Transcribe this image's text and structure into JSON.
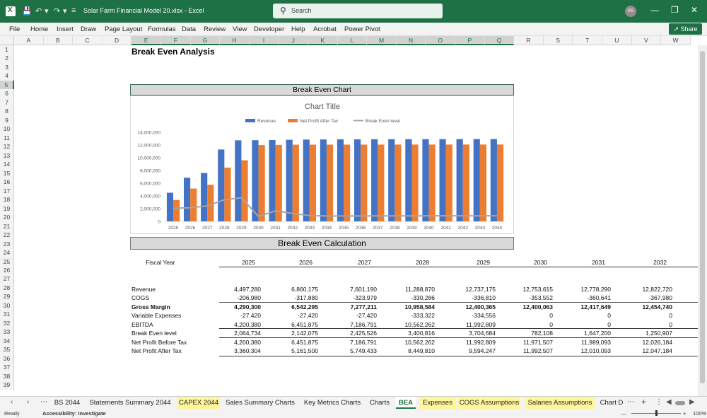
{
  "titlebar": {
    "doc_title": "Solar Farm Financial Model 20.xlsx  -  Excel",
    "search_placeholder": "Search",
    "avatar": "RS"
  },
  "menu": [
    "File",
    "Home",
    "Insert",
    "Draw",
    "Page Layout",
    "Formulas",
    "Data",
    "Review",
    "View",
    "Developer",
    "Help",
    "Acrobat",
    "Power Pivot"
  ],
  "share_label": "Share",
  "columns": [
    "A",
    "B",
    "C",
    "D",
    "E",
    "F",
    "G",
    "H",
    "I",
    "J",
    "K",
    "L",
    "M",
    "N",
    "O",
    "P",
    "Q",
    "R",
    "S",
    "T",
    "U",
    "V",
    "W"
  ],
  "rows": [
    "1",
    "2",
    "3",
    "4",
    "5",
    "6",
    "7",
    "8",
    "9",
    "10",
    "11",
    "12",
    "13",
    "14",
    "15",
    "16",
    "17",
    "18",
    "19",
    "20",
    "21",
    "22",
    "23",
    "24",
    "25",
    "26",
    "27",
    "28",
    "29",
    "30",
    "31",
    "32",
    "33",
    "34",
    "35",
    "36",
    "37",
    "38",
    "39"
  ],
  "sheet_title": "Break Even Analysis",
  "chart_band": "Break Even Chart",
  "calc_band": "Break Even Calculation",
  "chart_data": {
    "type": "bar",
    "title": "Chart Title",
    "categories": [
      "2025",
      "2026",
      "2027",
      "2028",
      "2029",
      "2030",
      "2031",
      "2032",
      "2033",
      "2034",
      "2035",
      "2036",
      "2037",
      "2038",
      "2039",
      "2040",
      "2041",
      "2042",
      "2043",
      "2044"
    ],
    "series": [
      {
        "name": "Revenue",
        "type": "bar",
        "color": "#4472c4",
        "values": [
          4497280,
          6860175,
          7601190,
          11288870,
          12737175,
          12753615,
          12778290,
          12822720,
          12850000,
          12870000,
          12880000,
          12890000,
          12900000,
          12905000,
          12910000,
          12915000,
          12920000,
          12925000,
          12930000,
          12935000
        ]
      },
      {
        "name": "Net Profit After Tax",
        "type": "bar",
        "color": "#ed7d31",
        "values": [
          3360304,
          5161500,
          5749433,
          8449810,
          9594247,
          11992507,
          12010093,
          12047184,
          12050000,
          12055000,
          12058000,
          12060000,
          12062000,
          12064000,
          12066000,
          12068000,
          12070000,
          12072000,
          12074000,
          12076000
        ]
      },
      {
        "name": "Break Even level",
        "type": "line",
        "color": "#a5a5a5",
        "values": [
          2064734,
          2142075,
          2425526,
          3400816,
          3704684,
          782108,
          1647200,
          1250907,
          900000,
          850000,
          850000,
          850000,
          860000,
          860000,
          860000,
          870000,
          870000,
          870000,
          880000,
          880000
        ]
      }
    ],
    "y_ticks": [
      "0",
      "2,000,000",
      "4,000,000",
      "6,000,000",
      "8,000,000",
      "10,000,000",
      "12,000,000",
      "14,000,000"
    ],
    "ylim": [
      0,
      14000000
    ],
    "legend_position": "top"
  },
  "table": {
    "fiscal_label": "Fiscal Year",
    "years": [
      "2025",
      "2026",
      "2027",
      "2028",
      "2029",
      "2030",
      "2031",
      "2032"
    ],
    "rows": [
      {
        "label": "Revenue",
        "bold": false,
        "values": [
          "4,497,280",
          "6,860,175",
          "7,601,190",
          "11,288,870",
          "12,737,175",
          "12,753,615",
          "12,778,290",
          "12,822,720"
        ]
      },
      {
        "label": "COGS",
        "bold": false,
        "values": [
          "-206,980",
          "-317,880",
          "-323,979",
          "-330,286",
          "-336,810",
          "-353,552",
          "-360,641",
          "-367,980"
        ]
      },
      {
        "label": "Gross Margin",
        "bold": true,
        "values": [
          "4,290,300",
          "6,542,295",
          "7,277,211",
          "10,958,584",
          "12,400,365",
          "12,400,063",
          "12,417,649",
          "12,454,740"
        ]
      },
      {
        "label": "Variable Expenses",
        "bold": false,
        "values": [
          "-27,420",
          "-27,420",
          "-27,420",
          "-333,322",
          "-334,556",
          "0",
          "0",
          "0"
        ]
      },
      {
        "label": "EBITDA",
        "bold": false,
        "values": [
          "4,200,380",
          "6,451,875",
          "7,186,791",
          "10,562,262",
          "11,992,809",
          "0",
          "0",
          "0"
        ]
      },
      {
        "label": "Break Even level",
        "bold": false,
        "values": [
          "2,064,734",
          "2,142,075",
          "2,425,526",
          "3,400,816",
          "3,704,684",
          "782,108",
          "1,647,200",
          "1,250,907"
        ]
      },
      {
        "label": "Net Profit Before Tax",
        "bold": false,
        "values": [
          "4,200,380",
          "6,451,875",
          "7,186,791",
          "10,562,262",
          "11,992,809",
          "11,971,507",
          "11,989,093",
          "12,026,184"
        ]
      },
      {
        "label": "Net Profit After Tax",
        "bold": false,
        "values": [
          "3,360,304",
          "5,161,500",
          "5,749,433",
          "8,449,810",
          "9,594,247",
          "11,992,507",
          "12,010,093",
          "12,047,184"
        ]
      }
    ]
  },
  "tabs": [
    {
      "label": "BS 2044",
      "style": "normal"
    },
    {
      "label": "Statements Summary 2044",
      "style": "normal"
    },
    {
      "label": "CAPEX 2044",
      "style": "yellow"
    },
    {
      "label": "Sales Summary Charts",
      "style": "normal"
    },
    {
      "label": "Key Metrics Charts",
      "style": "normal"
    },
    {
      "label": "Charts",
      "style": "normal"
    },
    {
      "label": "BEA",
      "style": "active"
    },
    {
      "label": "Expenses",
      "style": "yellow"
    },
    {
      "label": "COGS Assumptions",
      "style": "yellow"
    },
    {
      "label": "Salaries Assumptions",
      "style": "yellow"
    },
    {
      "label": "Chart D",
      "style": "normal"
    }
  ],
  "status": {
    "ready": "Ready",
    "accessibility": "Accessibility: Investigate",
    "zoom": "100%"
  }
}
